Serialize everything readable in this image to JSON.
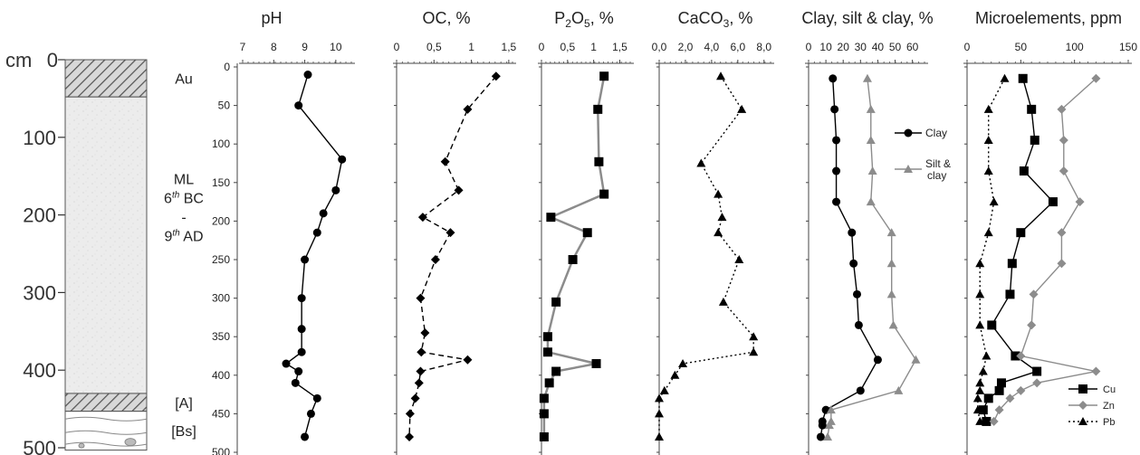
{
  "figure": {
    "depth_unit": "cm",
    "depth_ticks": [
      0,
      100,
      200,
      300,
      400,
      500
    ],
    "horizons": [
      {
        "label": "Au",
        "from": 0,
        "to": 48,
        "pattern": "hatch"
      },
      {
        "label": "ML\n6th BC\n-\n9th AD",
        "from": 48,
        "to": 430,
        "pattern": "speckle"
      },
      {
        "label": "[A]",
        "from": 430,
        "to": 453,
        "pattern": "hatch"
      },
      {
        "label": "[Bs]",
        "from": 453,
        "to": 503,
        "pattern": "wavy"
      }
    ]
  },
  "chart_data": [
    {
      "type": "scatter",
      "title": "pH",
      "xlim": [
        7,
        10.5
      ],
      "xticks": [
        "7",
        "8",
        "9",
        "10"
      ],
      "ylim": [
        0,
        500
      ],
      "yticks": [
        "0",
        "50",
        "100",
        "150",
        "200",
        "250",
        "300",
        "350",
        "400",
        "450",
        "500"
      ],
      "series": [
        {
          "marker": "circle",
          "color": "#000000",
          "line": "solid",
          "depth": [
            10,
            50,
            120,
            160,
            190,
            215,
            250,
            300,
            340,
            370,
            385,
            395,
            410,
            430,
            450,
            480
          ],
          "values": [
            9.1,
            8.8,
            10.2,
            10.0,
            9.6,
            9.4,
            9.0,
            8.9,
            8.9,
            8.9,
            8.4,
            8.8,
            8.7,
            9.4,
            9.2,
            9.0
          ]
        }
      ]
    },
    {
      "type": "scatter",
      "title": "OC, %",
      "xlim": [
        0,
        1.55
      ],
      "xticks": [
        "0",
        "0,5",
        "1",
        "1,5"
      ],
      "series": [
        {
          "marker": "diamond",
          "color": "#000000",
          "line": "dashed",
          "depth": [
            12,
            55,
            123,
            160,
            195,
            215,
            250,
            300,
            345,
            370,
            380,
            395,
            410,
            430,
            450,
            480
          ],
          "values": [
            1.33,
            0.95,
            0.65,
            0.83,
            0.35,
            0.72,
            0.52,
            0.32,
            0.38,
            0.33,
            0.95,
            0.32,
            0.3,
            0.25,
            0.18,
            0.17
          ]
        }
      ]
    },
    {
      "type": "scatter",
      "title": "P2O5, %",
      "title_main": "P",
      "title_sub": "2",
      "title_mid": "O",
      "title_sub2": "5",
      "title_rest": ", %",
      "xlim": [
        0,
        1.7
      ],
      "xticks": [
        "0",
        "0,5",
        "1",
        "1,5"
      ],
      "series": [
        {
          "marker": "square",
          "color": "#000000",
          "line_color": "#8c8c8c",
          "line": "solid",
          "depth": [
            12,
            55,
            123,
            165,
            195,
            215,
            250,
            305,
            350,
            370,
            385,
            395,
            410,
            430,
            450,
            480
          ],
          "values": [
            1.2,
            1.08,
            1.1,
            1.2,
            0.18,
            0.88,
            0.6,
            0.28,
            0.12,
            0.12,
            1.05,
            0.28,
            0.15,
            0.05,
            0.05,
            0.05
          ]
        }
      ]
    },
    {
      "type": "scatter",
      "title": "CaCO3, %",
      "title_main": "CaCO",
      "title_sub": "3",
      "title_rest": ", %",
      "xlim": [
        0,
        8.5
      ],
      "xticks": [
        "0,0",
        "2,0",
        "4,0",
        "6,0",
        "8,0"
      ],
      "series": [
        {
          "marker": "triangle",
          "color": "#000000",
          "line": "dotted",
          "depth": [
            12,
            55,
            125,
            165,
            195,
            215,
            250,
            305,
            350,
            370,
            385,
            400,
            420,
            430,
            450,
            480
          ],
          "values": [
            4.7,
            6.3,
            3.2,
            4.5,
            4.8,
            4.5,
            6.1,
            4.9,
            7.2,
            7.2,
            1.8,
            1.2,
            0.4,
            0.0,
            0.0,
            0.0
          ]
        }
      ]
    },
    {
      "type": "line",
      "title": "Clay, silt & clay, %",
      "xlim": [
        0,
        67
      ],
      "xticks": [
        "0",
        "10",
        "20",
        "30",
        "40",
        "50",
        "60"
      ],
      "legend": [
        "Clay",
        "Silt &\nclay"
      ],
      "series": [
        {
          "name": "Clay",
          "marker": "circle",
          "color": "#000000",
          "depth": [
            15,
            55,
            95,
            135,
            175,
            215,
            255,
            295,
            335,
            380,
            420,
            445,
            460,
            465,
            480
          ],
          "values": [
            14,
            15,
            16,
            16,
            16,
            25,
            26,
            28,
            29,
            40,
            30,
            10,
            8,
            8,
            7
          ]
        },
        {
          "name": "Silt & clay",
          "marker": "triangle",
          "color": "#8c8c8c",
          "depth": [
            15,
            55,
            95,
            135,
            175,
            215,
            255,
            295,
            335,
            380,
            420,
            445,
            460,
            465,
            480
          ],
          "values": [
            34,
            36,
            36,
            37,
            36,
            48,
            48,
            48,
            49,
            62,
            52,
            13,
            13,
            12,
            11
          ]
        }
      ]
    },
    {
      "type": "line",
      "title": "Microelements, ppm",
      "xlim": [
        0,
        150
      ],
      "xticks": [
        "0",
        "50",
        "100",
        "150"
      ],
      "legend": [
        "Cu",
        "Zn",
        "Pb"
      ],
      "series": [
        {
          "name": "Cu",
          "marker": "square",
          "color": "#000000",
          "line": "solid",
          "depth": [
            15,
            55,
            95,
            135,
            175,
            215,
            255,
            295,
            335,
            375,
            395,
            410,
            420,
            430,
            445,
            460
          ],
          "values": [
            52,
            60,
            63,
            53,
            80,
            50,
            42,
            40,
            23,
            45,
            65,
            32,
            30,
            20,
            15,
            18
          ]
        },
        {
          "name": "Zn",
          "marker": "diamond",
          "color": "#8c8c8c",
          "line": "solid",
          "depth": [
            15,
            55,
            95,
            135,
            175,
            215,
            255,
            295,
            335,
            375,
            395,
            410,
            420,
            430,
            445,
            460
          ],
          "values": [
            120,
            88,
            90,
            90,
            105,
            88,
            88,
            62,
            60,
            50,
            120,
            65,
            50,
            40,
            30,
            25
          ]
        },
        {
          "name": "Pb",
          "marker": "triangle",
          "color": "#000000",
          "line": "dotted",
          "depth": [
            15,
            55,
            95,
            135,
            175,
            215,
            255,
            295,
            335,
            375,
            395,
            410,
            420,
            430,
            445,
            460
          ],
          "values": [
            35,
            20,
            20,
            20,
            25,
            20,
            12,
            12,
            12,
            18,
            15,
            12,
            12,
            10,
            10,
            12
          ]
        }
      ]
    }
  ]
}
